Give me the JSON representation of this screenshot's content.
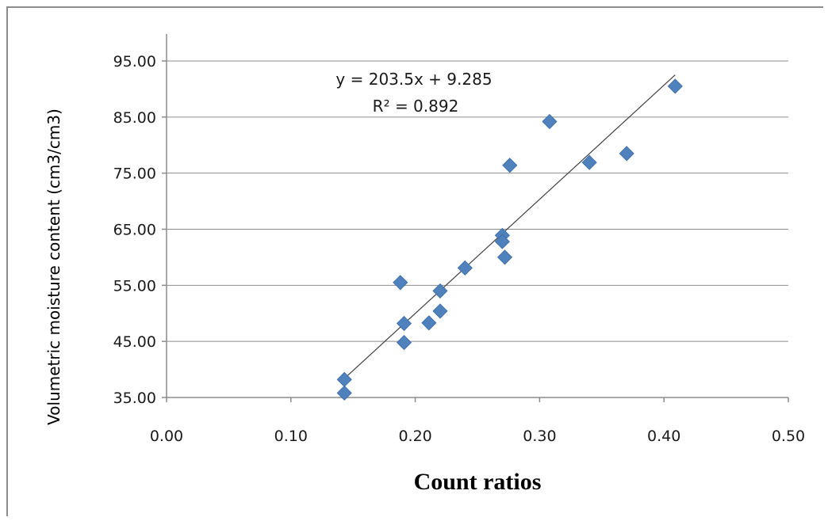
{
  "chart_data": {
    "type": "scatter",
    "xlabel": "Count ratios",
    "ylabel": "Volumetric moisture content (cm3/cm3)",
    "xlim": [
      0.0,
      0.5
    ],
    "ylim": [
      35.0,
      95.0
    ],
    "x_ticks": [
      "0.00",
      "0.10",
      "0.20",
      "0.30",
      "0.40",
      "0.50"
    ],
    "y_ticks": [
      "35.00",
      "45.00",
      "55.00",
      "65.00",
      "75.00",
      "85.00",
      "95.00"
    ],
    "grid": "horizontal",
    "marker_color": "#4f81bd",
    "trendline_color": "#404040",
    "series": [
      {
        "points": [
          {
            "x": 0.143,
            "y": 38.2
          },
          {
            "x": 0.143,
            "y": 35.8
          },
          {
            "x": 0.188,
            "y": 55.5
          },
          {
            "x": 0.191,
            "y": 48.2
          },
          {
            "x": 0.191,
            "y": 44.8
          },
          {
            "x": 0.211,
            "y": 48.3
          },
          {
            "x": 0.22,
            "y": 54.0
          },
          {
            "x": 0.22,
            "y": 50.4
          },
          {
            "x": 0.24,
            "y": 58.1
          },
          {
            "x": 0.27,
            "y": 63.9
          },
          {
            "x": 0.27,
            "y": 62.8
          },
          {
            "x": 0.272,
            "y": 60.0
          },
          {
            "x": 0.276,
            "y": 76.4
          },
          {
            "x": 0.308,
            "y": 84.2
          },
          {
            "x": 0.34,
            "y": 76.9
          },
          {
            "x": 0.37,
            "y": 78.5
          },
          {
            "x": 0.409,
            "y": 90.5
          }
        ]
      }
    ],
    "trendline": {
      "slope": 203.5,
      "intercept": 9.285,
      "x_range": [
        0.143,
        0.409
      ],
      "equation": "y = 203.5x + 9.285",
      "r2_label": "R² = 0.892"
    }
  }
}
